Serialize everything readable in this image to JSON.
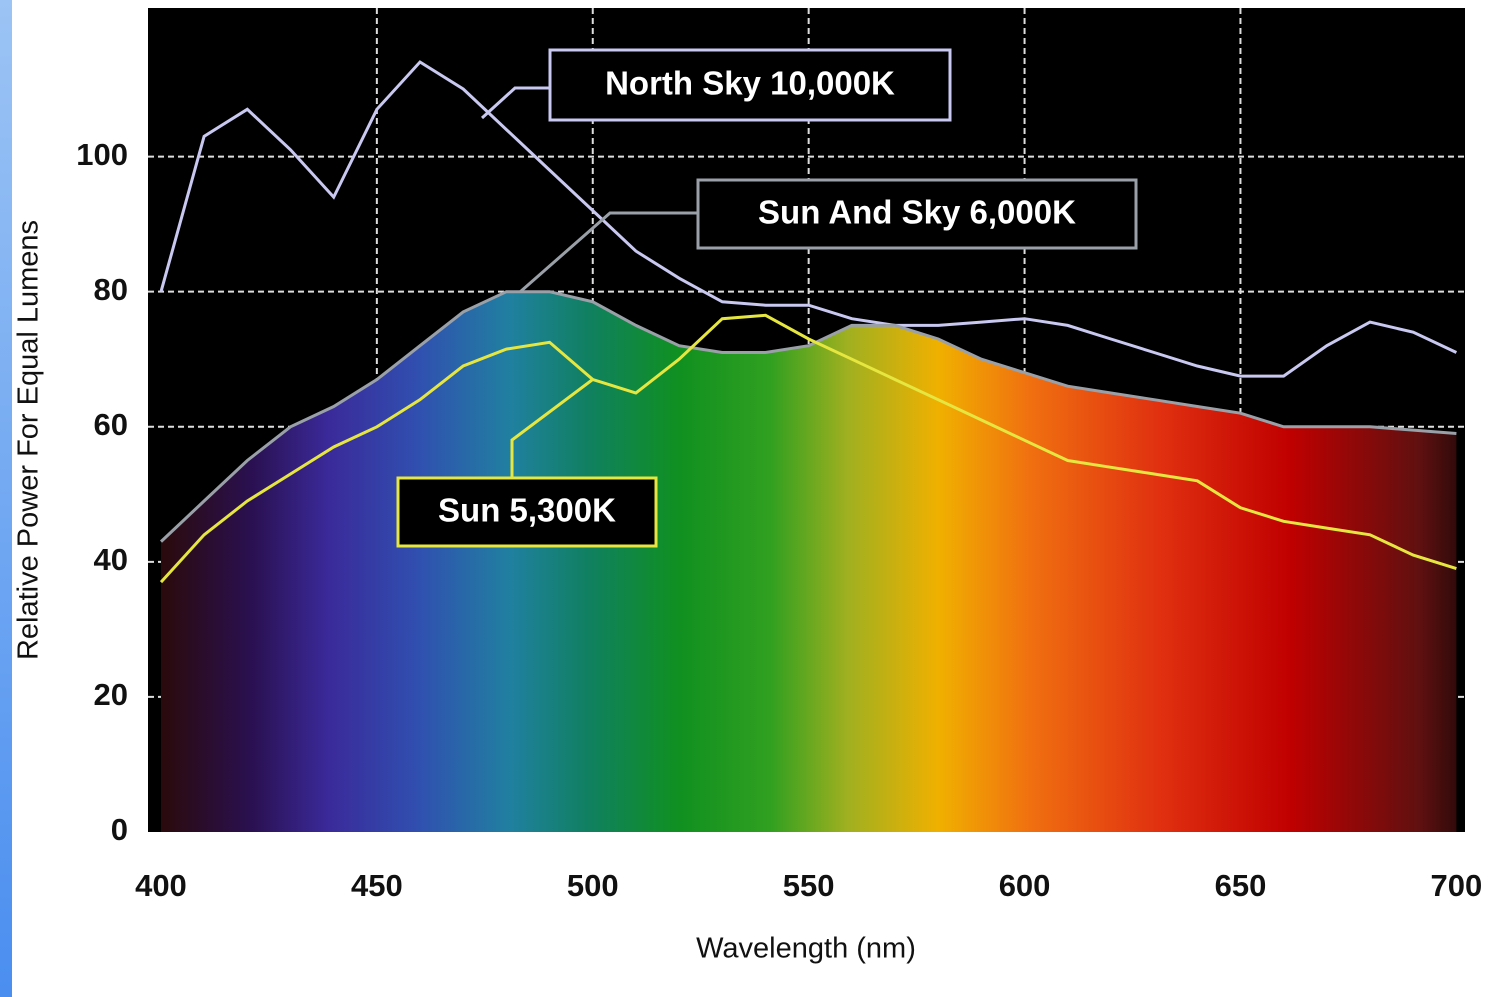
{
  "chart_data": {
    "type": "line",
    "x_label": "Wavelength (nm)",
    "y_label": "Relative Power For Equal Lumens",
    "x": [
      400,
      410,
      420,
      430,
      440,
      450,
      460,
      470,
      480,
      490,
      500,
      510,
      520,
      530,
      540,
      550,
      560,
      570,
      580,
      590,
      600,
      610,
      620,
      630,
      640,
      650,
      660,
      670,
      680,
      690,
      700
    ],
    "series": [
      {
        "name": "North Sky 10,000K",
        "color": "#c8c8f0",
        "values": [
          80,
          103,
          107,
          101,
          94,
          107,
          114,
          110,
          104,
          98,
          92,
          86,
          82,
          78.5,
          78,
          78,
          76,
          75,
          75,
          75.5,
          76,
          75,
          73,
          71,
          69,
          67.5,
          67.5,
          72,
          75.5,
          74,
          71
        ]
      },
      {
        "name": "Sun And Sky 6,000K",
        "color": "#9aa0a8",
        "values": [
          43,
          49,
          55,
          60,
          63,
          67,
          72,
          77,
          80,
          80,
          78.5,
          75,
          72,
          71,
          71,
          72,
          75,
          75,
          73,
          70,
          68,
          66,
          65,
          64,
          63,
          62,
          60,
          60,
          60,
          59.5,
          59
        ]
      },
      {
        "name": "Sun 5,300K",
        "color": "#e6e640",
        "values": [
          37,
          44,
          49,
          53,
          57,
          60,
          64,
          69,
          71.5,
          72.5,
          67,
          65,
          70,
          76,
          76.5,
          73,
          70,
          67,
          64,
          61,
          58,
          55,
          54,
          53,
          52,
          48,
          46,
          45,
          44,
          41,
          39
        ]
      }
    ],
    "xlim": [
      397,
      702
    ],
    "ylim": [
      0,
      122
    ],
    "xticks": [
      400,
      450,
      500,
      550,
      600,
      650,
      700
    ],
    "yticks": [
      0,
      20,
      40,
      60,
      80,
      100
    ],
    "grid": true
  }
}
